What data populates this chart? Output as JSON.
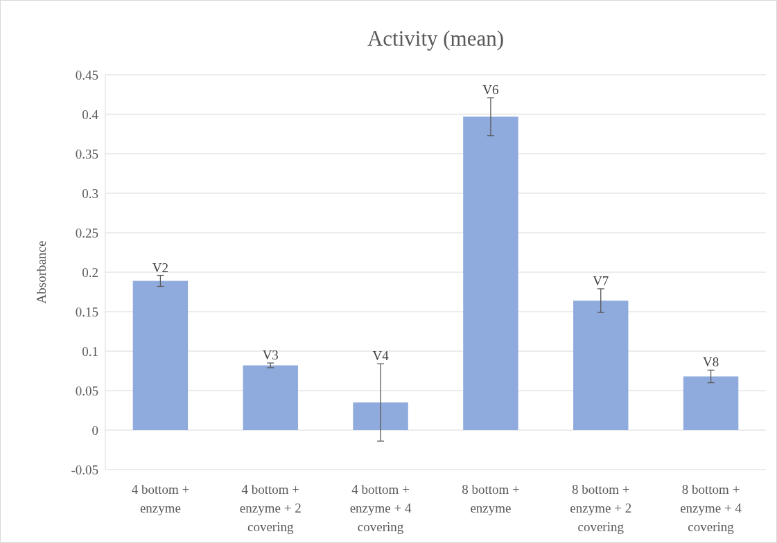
{
  "chart_data": {
    "type": "bar",
    "title": "Activity (mean)",
    "ylabel": "Absorbance",
    "categories": [
      "4 bottom + enzyme",
      "4 bottom + enzyme + 2 covering",
      "4 bottom + enzyme + 4 covering",
      "8 bottom + enzyme",
      "8 bottom + enzyme + 2 covering",
      "8 bottom + enzyme + 4 covering"
    ],
    "values": [
      0.189,
      0.082,
      0.035,
      0.397,
      0.164,
      0.068
    ],
    "errors": [
      0.007,
      0.003,
      0.049,
      0.024,
      0.015,
      0.008
    ],
    "value_labels": [
      "V2",
      "V3",
      "V4",
      "V6",
      "V7",
      "V8"
    ],
    "color": "#8faadc",
    "ylim": [
      -0.05,
      0.45
    ],
    "yticks": [
      -0.05,
      0,
      0.05,
      0.1,
      0.15,
      0.2,
      0.25,
      0.3,
      0.35,
      0.4,
      0.45
    ],
    "grid": "y"
  }
}
